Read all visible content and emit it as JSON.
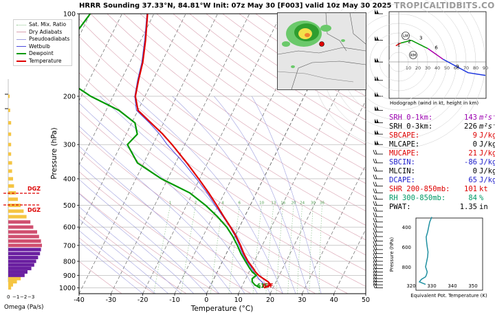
{
  "title": "HRRR Sounding 37.33°N, 84.81°W Init: 07z May 30 [F003] valid 10z May 30 2025",
  "brand": "TROPICALTIDBITS.COM",
  "colors": {
    "temperature": "#e00000",
    "dewpoint": "#009900",
    "wetbulb": "#4a4adf",
    "dry_adiabat": "#d9a0b0",
    "pseudoadiabat": "#9f9fdf",
    "mix_ratio": "#8dc48d",
    "isotherm": "#555555",
    "dgz": "#dd0000"
  },
  "legend": [
    {
      "label": "Sat. Mix. Ratio",
      "color": "#8dc48d",
      "style": "dotted"
    },
    {
      "label": "Dry Adiabats",
      "color": "#d9a0b0",
      "style": "solid"
    },
    {
      "label": "Pseudoadiabats",
      "color": "#9f9fdf",
      "style": "solid"
    },
    {
      "label": "Wetbulb",
      "color": "#4a4adf",
      "style": "solid"
    },
    {
      "label": "Dewpoint",
      "color": "#009900",
      "style": "solid"
    },
    {
      "label": "Temperature",
      "color": "#e00000",
      "style": "solid"
    }
  ],
  "skewt": {
    "xlabel": "Temperature (°C)",
    "ylabel": "Pressure (hPa)",
    "xticks": [
      -40,
      -30,
      -20,
      -10,
      0,
      10,
      20,
      30,
      40,
      50
    ],
    "yticks": [
      100,
      200,
      300,
      400,
      500,
      600,
      700,
      800,
      900,
      1000
    ],
    "mix_ratio_labels": [
      "1",
      "2",
      "4",
      "6",
      "10",
      "13",
      "16",
      "20",
      "24",
      "30",
      "36"
    ],
    "surface_dewpoint_label": "61F",
    "surface_temp_label": "63F",
    "omega_label": "Omega (Pa/s)",
    "omega_ticks": [
      "0",
      "−1",
      "−2",
      "−3"
    ],
    "dgz_label": "DGZ"
  },
  "hodograph": {
    "caption": "Hodograph (wind in kt, height in km)",
    "ring_labels": [
      "10",
      "20",
      "30",
      "40",
      "50",
      "60",
      "70",
      "80",
      "90"
    ],
    "height_labels": [
      "1",
      "2",
      "3",
      "6",
      "9"
    ],
    "markers": [
      "LM",
      "RM"
    ]
  },
  "params": [
    {
      "label": "SRH 0-1km:",
      "value": "143",
      "unit": "m²s⁻²",
      "color": "#9b00b0"
    },
    {
      "label": "SRH 0-3km:",
      "value": "226",
      "unit": "m²s⁻²",
      "color": "#000000"
    },
    {
      "label": "SBCAPE:",
      "value": "9",
      "unit": "J/kg",
      "color": "#dd0000"
    },
    {
      "label": "MLCAPE:",
      "value": "0",
      "unit": "J/kg",
      "color": "#000000"
    },
    {
      "label": "MUCAPE:",
      "value": "21",
      "unit": "J/kg",
      "color": "#dd0000"
    },
    {
      "label": "SBCIN:",
      "value": "-86",
      "unit": "J/kg",
      "color": "#2222cc"
    },
    {
      "label": "MLCIN:",
      "value": "0",
      "unit": "J/kg",
      "color": "#000000"
    },
    {
      "label": "DCAPE:",
      "value": "65",
      "unit": "J/kg",
      "color": "#2222cc"
    },
    {
      "label": "SHR 200-850mb:",
      "value": "101",
      "unit": "kt",
      "color": "#dd0000"
    },
    {
      "label": "RH 300-850mb:",
      "value": "84",
      "unit": "%",
      "color": "#009966"
    },
    {
      "label": "PWAT:",
      "value": "1.35",
      "unit": "in",
      "color": "#000000"
    }
  ],
  "theta_e_plot": {
    "xlabel": "Equivalent Pot. Temperature (K)",
    "ylabel": "Pressure (hPa)",
    "xticks": [
      "320",
      "330",
      "340",
      "350"
    ],
    "yticks": [
      "400",
      "600",
      "800"
    ]
  },
  "chart_data": [
    {
      "type": "line",
      "name": "skew-t",
      "xlabel": "Temperature (°C)",
      "ylabel": "Pressure (hPa)",
      "xlim": [
        -40,
        50
      ],
      "ylim": [
        1050,
        100
      ],
      "y_scale": "log",
      "series": [
        {
          "name": "Temperature",
          "p": [
            1000,
            975,
            950,
            925,
            900,
            875,
            850,
            800,
            750,
            700,
            650,
            600,
            550,
            500,
            450,
            400,
            350,
            300,
            275,
            250,
            225,
            200,
            175,
            150,
            125,
            100
          ],
          "t": [
            17.2,
            18.8,
            17.5,
            15.5,
            13.5,
            12.0,
            10.8,
            8.0,
            5.5,
            3.2,
            0.5,
            -2.8,
            -6.5,
            -10.5,
            -15.0,
            -20.3,
            -26.5,
            -34.0,
            -38.5,
            -44.0,
            -50.0,
            -53.0,
            -54.5,
            -56.0,
            -58.5,
            -62.0
          ]
        },
        {
          "name": "Wetbulb",
          "p": [
            1000,
            975,
            950,
            925,
            900,
            875,
            850,
            800,
            750,
            700,
            650,
            600,
            550,
            500,
            450,
            400,
            350,
            300,
            275,
            250,
            225,
            200,
            175,
            150,
            125,
            100
          ],
          "t": [
            16.6,
            16.8,
            15.5,
            14.0,
            12.8,
            11.5,
            10.3,
            7.6,
            5.1,
            2.8,
            0.2,
            -3.0,
            -6.8,
            -11.0,
            -15.5,
            -21.0,
            -27.5,
            -35.5,
            -39.5,
            -44.5,
            -50.5,
            -53.2,
            -54.8,
            -56.3,
            -58.8,
            -62.2
          ]
        },
        {
          "name": "Dewpoint",
          "p": [
            1000,
            975,
            950,
            925,
            900,
            875,
            850,
            800,
            750,
            700,
            650,
            600,
            550,
            500,
            450,
            400,
            350,
            300,
            275,
            250,
            225,
            200,
            175,
            150,
            125,
            100
          ],
          "t": [
            16.0,
            13.8,
            12.5,
            12.0,
            12.8,
            11.0,
            9.7,
            7.2,
            4.6,
            2.2,
            -0.6,
            -4.0,
            -8.5,
            -14.0,
            -21.0,
            -32.0,
            -42.0,
            -48.0,
            -46.5,
            -49.0,
            -56.0,
            -67.0,
            -77.0,
            -82.0,
            -82.0,
            -80.0
          ]
        }
      ]
    },
    {
      "type": "line",
      "name": "equivalent-potential-temperature",
      "xlabel": "Equivalent Pot. Temperature (K)",
      "ylabel": "Pressure (hPa)",
      "xlim": [
        315,
        355
      ],
      "ylim": [
        1000,
        300
      ],
      "series": [
        {
          "name": "theta-e",
          "p": [
            975,
            950,
            925,
            900,
            875,
            850,
            800,
            750,
            700,
            650,
            600,
            550,
            500,
            450,
            400,
            350,
            300
          ],
          "theta_e": [
            327,
            324,
            325,
            327,
            327.5,
            327.8,
            327,
            327.5,
            328,
            328.2,
            327.8,
            327.5,
            327.3,
            328,
            328.5,
            329,
            330
          ]
        }
      ]
    },
    {
      "type": "bar",
      "name": "omega",
      "xlabel": "Omega (Pa/s)",
      "p": [
        1000,
        975,
        950,
        925,
        900,
        875,
        850,
        825,
        800,
        775,
        750,
        725,
        700,
        675,
        650,
        625,
        600,
        575,
        550,
        525,
        500,
        475,
        450,
        425,
        400,
        375,
        350,
        325,
        300,
        275,
        250,
        225,
        200
      ],
      "values": [
        -0.3,
        -0.5,
        -0.9,
        -1.3,
        -1.7,
        -2.0,
        -2.4,
        -2.7,
        -2.9,
        -3.1,
        -3.3,
        -3.4,
        -3.5,
        -3.4,
        -3.2,
        -3.0,
        -2.6,
        -2.3,
        -1.9,
        -1.6,
        -1.3,
        -1.0,
        -0.8,
        -0.6,
        -0.5,
        -0.4,
        -0.4,
        -0.3,
        -0.3,
        -0.3,
        -0.3,
        -0.2,
        -0.1
      ]
    },
    {
      "type": "line",
      "name": "hodograph",
      "xlabel": "",
      "ylabel": "",
      "series": [
        {
          "name": "0-1 km",
          "points": [
            [
              -3,
              6
            ],
            [
              2,
              7
            ]
          ]
        },
        {
          "name": "1-3 km",
          "points": [
            [
              2,
              7
            ],
            [
              13,
              8
            ]
          ]
        },
        {
          "name": "3-6 km",
          "points": [
            [
              13,
              8
            ],
            [
              30,
              5
            ]
          ]
        },
        {
          "name": "6-9 km",
          "points": [
            [
              30,
              5
            ],
            [
              46,
              1
            ]
          ]
        },
        {
          "name": "9+ km",
          "points": [
            [
              46,
              1
            ],
            [
              72,
              -4
            ],
            [
              90,
              -5
            ]
          ]
        }
      ]
    }
  ]
}
